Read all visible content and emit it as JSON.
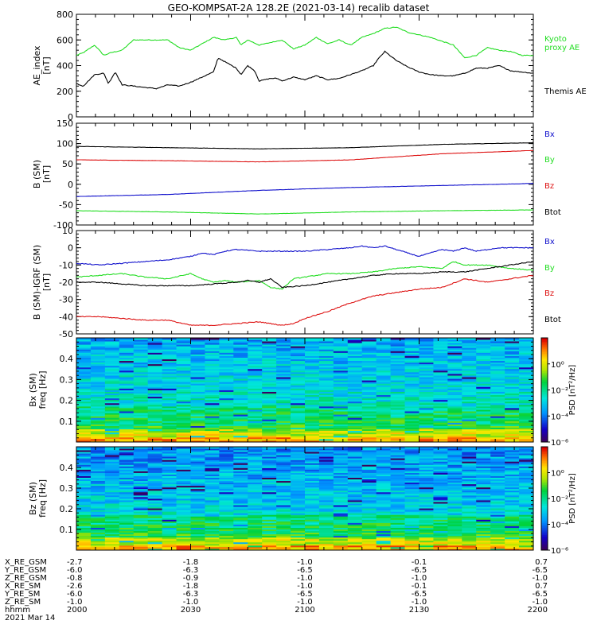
{
  "title": "GEO-KOMPSAT-2A 128.2E (2021-03-14) recalib dataset",
  "colors": {
    "black": "#000000",
    "green": "#22dd22",
    "red": "#dd1111",
    "blue": "#1111cc"
  },
  "chart_data": [
    {
      "type": "line",
      "panel": "ae",
      "ylabel": "AE_index\n[nT]",
      "ylim": [
        0,
        800
      ],
      "yticks": [
        "0",
        "200",
        "400",
        "600",
        "800"
      ],
      "ytick_values": [
        0,
        200,
        400,
        600,
        800
      ],
      "series": [
        {
          "name": "Kyoto\nproxy AE",
          "color": "#22dd22",
          "x": [
            0,
            3,
            8,
            12,
            15,
            20,
            25,
            30,
            40,
            45,
            50,
            55,
            60,
            65,
            70,
            72,
            75,
            80,
            85,
            90,
            95,
            100,
            105,
            110,
            115,
            120,
            125,
            130,
            135,
            140,
            145,
            150,
            155,
            160,
            165,
            170,
            175,
            180,
            185,
            190,
            195,
            200
          ],
          "values": [
            480,
            500,
            560,
            480,
            500,
            520,
            600,
            600,
            600,
            540,
            520,
            570,
            620,
            600,
            620,
            560,
            600,
            560,
            580,
            600,
            530,
            560,
            620,
            570,
            600,
            560,
            620,
            650,
            690,
            700,
            660,
            640,
            620,
            590,
            560,
            460,
            480,
            540,
            520,
            510,
            480,
            480
          ]
        },
        {
          "name": "Themis AE",
          "color": "#000000",
          "x": [
            0,
            3,
            8,
            12,
            14,
            17,
            20,
            25,
            30,
            35,
            40,
            45,
            50,
            55,
            60,
            62,
            65,
            70,
            72,
            75,
            78,
            80,
            85,
            88,
            90,
            95,
            100,
            105,
            110,
            115,
            120,
            125,
            130,
            132,
            135,
            140,
            145,
            150,
            155,
            160,
            165,
            170,
            175,
            180,
            185,
            190,
            195,
            200
          ],
          "values": [
            260,
            240,
            330,
            340,
            260,
            350,
            250,
            240,
            230,
            220,
            250,
            240,
            270,
            310,
            350,
            460,
            430,
            380,
            330,
            400,
            360,
            280,
            300,
            300,
            280,
            310,
            290,
            320,
            290,
            300,
            330,
            360,
            400,
            450,
            510,
            440,
            390,
            350,
            330,
            320,
            320,
            340,
            380,
            380,
            400,
            360,
            350,
            340
          ]
        }
      ]
    },
    {
      "type": "line",
      "panel": "b",
      "ylabel": "B (SM)\n[nT]",
      "ylim": [
        -100,
        150
      ],
      "yticks": [
        "-100",
        "-50",
        "0",
        "50",
        "100",
        "150"
      ],
      "ytick_values": [
        -100,
        -50,
        0,
        50,
        100,
        150
      ],
      "series": [
        {
          "name": "Bx",
          "color": "#1111cc",
          "x": [
            0,
            40,
            80,
            120,
            160,
            200
          ],
          "values": [
            -30,
            -25,
            -15,
            -8,
            -3,
            2
          ]
        },
        {
          "name": "By",
          "color": "#22dd22",
          "x": [
            0,
            40,
            80,
            120,
            160,
            200
          ],
          "values": [
            -65,
            -68,
            -73,
            -68,
            -65,
            -63
          ]
        },
        {
          "name": "Bz",
          "color": "#dd1111",
          "x": [
            0,
            40,
            80,
            120,
            160,
            200
          ],
          "values": [
            60,
            58,
            55,
            60,
            75,
            83
          ]
        },
        {
          "name": "Btot",
          "color": "#000000",
          "x": [
            0,
            40,
            80,
            120,
            160,
            200
          ],
          "values": [
            93,
            90,
            87,
            90,
            98,
            102
          ]
        }
      ]
    },
    {
      "type": "line",
      "panel": "db",
      "ylabel": "B (SM)-IGRF (SM)\n[nT]",
      "ylim": [
        -50,
        10
      ],
      "yticks": [
        "-50",
        "-40",
        "-30",
        "-20",
        "-10",
        "0",
        "10"
      ],
      "ytick_values": [
        -50,
        -40,
        -30,
        -20,
        -10,
        0,
        10
      ],
      "series": [
        {
          "name": "Bx",
          "color": "#1111cc",
          "x": [
            0,
            10,
            20,
            30,
            40,
            50,
            55,
            60,
            65,
            70,
            80,
            90,
            100,
            110,
            120,
            125,
            130,
            135,
            140,
            145,
            150,
            155,
            160,
            165,
            170,
            175,
            180,
            185,
            190,
            200
          ],
          "values": [
            -9,
            -10,
            -9,
            -8,
            -7,
            -5,
            -3,
            -4,
            -2,
            -1,
            -2,
            -2,
            -2,
            -1,
            0,
            1,
            0,
            1,
            -1,
            -3,
            -5,
            -3,
            -1,
            -2,
            0,
            -2,
            -1,
            0,
            0,
            0
          ]
        },
        {
          "name": "By",
          "color": "#22dd22",
          "x": [
            0,
            10,
            20,
            30,
            40,
            50,
            55,
            60,
            65,
            70,
            80,
            85,
            90,
            95,
            100,
            110,
            120,
            130,
            140,
            150,
            160,
            165,
            170,
            180,
            190,
            200
          ],
          "values": [
            -17,
            -16,
            -15,
            -17,
            -18,
            -15,
            -18,
            -20,
            -19,
            -20,
            -19,
            -23,
            -24,
            -18,
            -17,
            -15,
            -15,
            -14,
            -12,
            -11,
            -12,
            -8,
            -10,
            -10,
            -12,
            -13
          ]
        },
        {
          "name": "Bz",
          "color": "#dd1111",
          "x": [
            0,
            10,
            20,
            30,
            40,
            50,
            60,
            70,
            80,
            90,
            95,
            100,
            110,
            120,
            130,
            140,
            150,
            160,
            170,
            180,
            190,
            200
          ],
          "values": [
            -40,
            -40,
            -41,
            -42,
            -42,
            -45,
            -45,
            -44,
            -43,
            -45,
            -44,
            -41,
            -37,
            -32,
            -28,
            -26,
            -24,
            -23,
            -18,
            -20,
            -18,
            -16
          ]
        },
        {
          "name": "Btot",
          "color": "#000000",
          "x": [
            0,
            10,
            20,
            30,
            40,
            50,
            60,
            70,
            75,
            80,
            85,
            90,
            100,
            110,
            120,
            130,
            140,
            150,
            160,
            170,
            180,
            190,
            200
          ],
          "values": [
            -20,
            -20,
            -21,
            -22,
            -22,
            -22,
            -21,
            -20,
            -19,
            -20,
            -18,
            -23,
            -22,
            -20,
            -18,
            -16,
            -15,
            -15,
            -14,
            -14,
            -12,
            -10,
            -8
          ]
        }
      ]
    },
    {
      "type": "heatmap",
      "panel": "spec_bx",
      "ylabel": "Bx (SM)\nfreq [Hz]",
      "ylim": [
        0,
        0.5
      ],
      "yticks": [
        "0.1",
        "0.2",
        "0.3",
        "0.4"
      ],
      "ytick_values": [
        0.1,
        0.2,
        0.3,
        0.4
      ],
      "colorbar": {
        "label": "PSD [nT²/Hz]",
        "log_range": [
          -6,
          2
        ],
        "ticks": [
          "10⁰",
          "10⁻²",
          "10⁻⁴",
          "10⁻⁶"
        ],
        "tick_values": [
          0,
          -2,
          -4,
          -6
        ]
      }
    },
    {
      "type": "heatmap",
      "panel": "spec_bz",
      "ylabel": "Bz (SM)\nfreq [Hz]",
      "ylim": [
        0,
        0.5
      ],
      "yticks": [
        "0.1",
        "0.2",
        "0.3",
        "0.4"
      ],
      "ytick_values": [
        0.1,
        0.2,
        0.3,
        0.4
      ],
      "colorbar": {
        "label": "PSD [nT²/Hz]",
        "log_range": [
          -6,
          2
        ],
        "ticks": [
          "10⁰",
          "10⁻²",
          "10⁻⁴",
          "10⁻⁶"
        ],
        "tick_values": [
          0,
          -2,
          -4,
          -6
        ]
      }
    }
  ],
  "x_axis": {
    "range_minutes": [
      0,
      120
    ],
    "tick_minutes": [
      0,
      30,
      60,
      90,
      120
    ],
    "rows": [
      {
        "label": "X_RE_GSM",
        "values": [
          "-2.7",
          "-1.8",
          "-1.0",
          "-0.1",
          "0.7"
        ]
      },
      {
        "label": "Y_RE_GSM",
        "values": [
          "-6.0",
          "-6.3",
          "-6.5",
          "-6.5",
          "-6.5"
        ]
      },
      {
        "label": "Z_RE_GSM",
        "values": [
          "-0.8",
          "-0.9",
          "-1.0",
          "-1.0",
          "-1.0"
        ]
      },
      {
        "label": "X_RE_SM",
        "values": [
          "-2.6",
          "-1.8",
          "-1.0",
          "-0.1",
          "0.7"
        ]
      },
      {
        "label": "Y_RE_SM",
        "values": [
          "-6.0",
          "-6.3",
          "-6.5",
          "-6.5",
          "-6.5"
        ]
      },
      {
        "label": "Z_RE_SM",
        "values": [
          "-1.0",
          "-1.0",
          "-1.0",
          "-1.0",
          "-1.0"
        ]
      },
      {
        "label": "hhmm",
        "values": [
          "2000",
          "2030",
          "2100",
          "2130",
          "2200"
        ]
      }
    ],
    "date_label": "2021 Mar 14"
  }
}
